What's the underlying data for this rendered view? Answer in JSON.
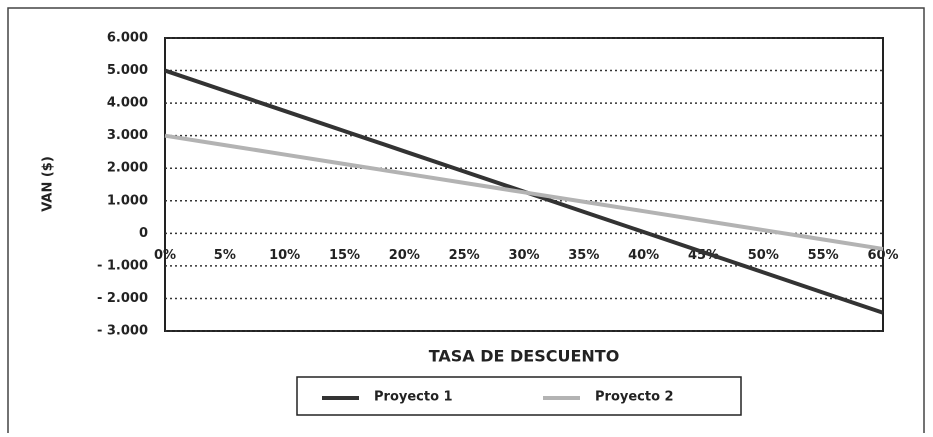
{
  "chart_data": {
    "type": "line",
    "xlabel": "TASA DE DESCUENTO",
    "ylabel": "VAN ($)",
    "x": [
      0,
      5,
      10,
      15,
      20,
      25,
      30,
      35,
      40,
      45,
      50,
      55,
      60
    ],
    "series": [
      {
        "name": "Proyecto 1",
        "color": "#333333",
        "values": [
          5000,
          4380,
          3760,
          3140,
          2520,
          1900,
          1280,
          660,
          40,
          -580,
          -1200,
          -1820,
          -2440
        ]
      },
      {
        "name": "Proyecto 2",
        "color": "#b3b3b3",
        "values": [
          3000,
          2710,
          2420,
          2130,
          1840,
          1550,
          1260,
          970,
          680,
          390,
          100,
          -190,
          -480
        ]
      }
    ],
    "xlim": [
      0,
      60
    ],
    "xticks": [
      {
        "value": 0,
        "label": "0%"
      },
      {
        "value": 5,
        "label": "5%"
      },
      {
        "value": 10,
        "label": "10%"
      },
      {
        "value": 15,
        "label": "15%"
      },
      {
        "value": 20,
        "label": "20%"
      },
      {
        "value": 25,
        "label": "25%"
      },
      {
        "value": 30,
        "label": "30%"
      },
      {
        "value": 35,
        "label": "35%"
      },
      {
        "value": 40,
        "label": "40%"
      },
      {
        "value": 45,
        "label": "45%"
      },
      {
        "value": 50,
        "label": "50%"
      },
      {
        "value": 55,
        "label": "55%"
      },
      {
        "value": 60,
        "label": "60%"
      }
    ],
    "ylim": [
      -3000,
      6000
    ],
    "yticks": [
      {
        "value": 6000,
        "label": "6.000"
      },
      {
        "value": 5000,
        "label": "5.000"
      },
      {
        "value": 4000,
        "label": "4.000"
      },
      {
        "value": 3000,
        "label": "3.000"
      },
      {
        "value": 2000,
        "label": "2.000"
      },
      {
        "value": 1000,
        "label": "1.000"
      },
      0,
      {
        "value": -1000,
        "label": "- 1.000"
      },
      {
        "value": -2000,
        "label": "- 2.000"
      },
      {
        "value": -3000,
        "label": "- 3.000"
      }
    ],
    "grid": true,
    "legend": "bottom"
  }
}
